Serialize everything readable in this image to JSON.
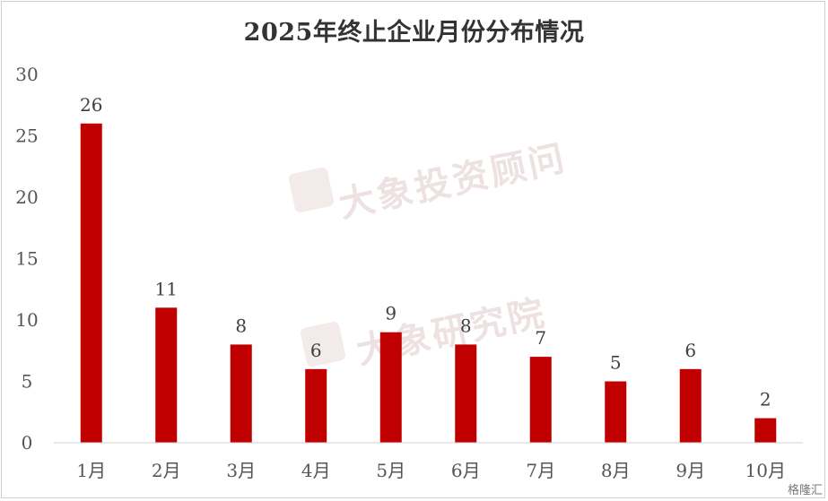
{
  "chart_data": {
    "type": "bar",
    "title": "2025年终止企业月份分布情况",
    "categories": [
      "1月",
      "2月",
      "3月",
      "4月",
      "5月",
      "6月",
      "7月",
      "8月",
      "9月",
      "10月"
    ],
    "values": [
      26,
      11,
      8,
      6,
      9,
      8,
      7,
      5,
      6,
      2
    ],
    "ylim": [
      0,
      30
    ],
    "yticks": [
      0,
      5,
      10,
      15,
      20,
      25,
      30
    ],
    "grid": false,
    "data_labels": true,
    "bar_color": "#C00000"
  },
  "watermarks": [
    "大象投资顾问",
    "大象研究院"
  ],
  "corner_logo": "格隆汇"
}
